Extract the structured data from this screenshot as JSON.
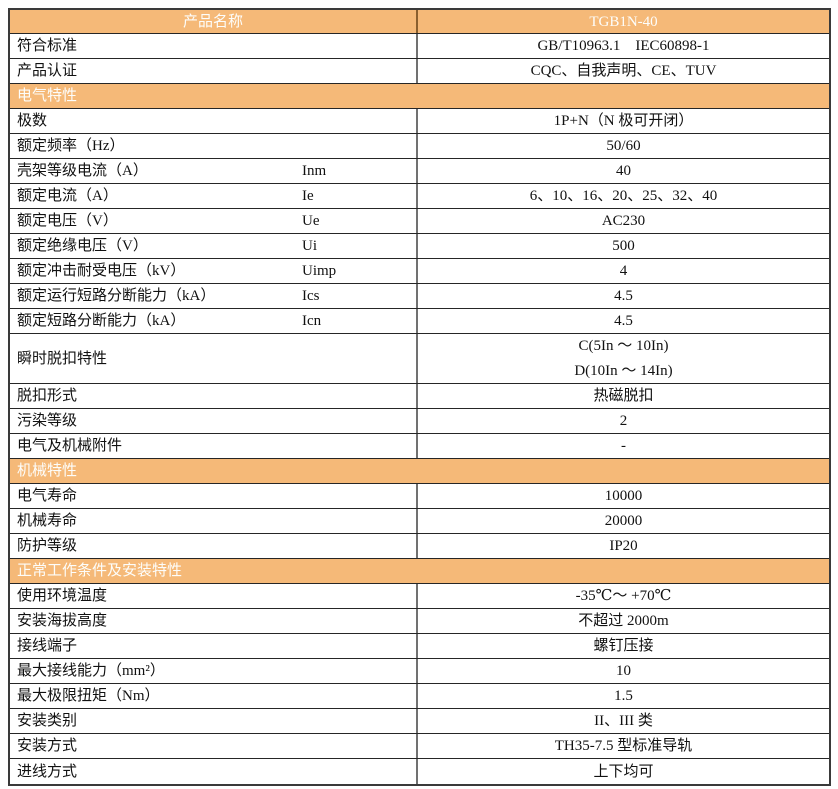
{
  "colors": {
    "band_bg": "#F5B978",
    "band_text": "#FDFDFA",
    "text": "#111111",
    "outer_border": "#3a3a3a",
    "row_border": "#262626",
    "divider": "#717171",
    "header_divider": "#8a5f2e",
    "page_bg": "#ffffff"
  },
  "table": {
    "rows": [
      {
        "type": "header",
        "label": "产品名称",
        "value": "TGB1N-40"
      },
      {
        "type": "spec",
        "label": "符合标准",
        "value": "GB/T10963.1　IEC60898-1"
      },
      {
        "type": "spec",
        "label": "产品认证",
        "value": "CQC、自我声明、CE、TUV"
      },
      {
        "type": "band",
        "label": "电气特性"
      },
      {
        "type": "spec",
        "label": "极数",
        "value": "1P+N（N 极可开闭）"
      },
      {
        "type": "spec",
        "label": "额定频率（Hz）",
        "value": "50/60"
      },
      {
        "type": "spec",
        "label": "壳架等级电流（A）",
        "symbol": "Inm",
        "value": "40"
      },
      {
        "type": "spec",
        "label": "额定电流（A）",
        "symbol": "Ie",
        "value": "6、10、16、20、25、32、40"
      },
      {
        "type": "spec",
        "label": "额定电压（V）",
        "symbol": "Ue",
        "value": "AC230"
      },
      {
        "type": "spec",
        "label": "额定绝缘电压（V）",
        "symbol": "Ui",
        "value": "500"
      },
      {
        "type": "spec",
        "label": "额定冲击耐受电压（kV）",
        "symbol": "Uimp",
        "value": "4"
      },
      {
        "type": "spec",
        "label": "额定运行短路分断能力（kA）",
        "symbol": "Ics",
        "value": "4.5"
      },
      {
        "type": "spec",
        "label": "额定短路分断能力（kA）",
        "symbol": "Icn",
        "value": "4.5"
      },
      {
        "type": "spec2",
        "label": "瞬时脱扣特性",
        "values": [
          "C(5In ～ 10In)",
          "D(10In ～ 14In)"
        ]
      },
      {
        "type": "spec",
        "label": "脱扣形式",
        "value": "热磁脱扣"
      },
      {
        "type": "spec",
        "label": "污染等级",
        "value": "2"
      },
      {
        "type": "spec",
        "label": "电气及机械附件",
        "value": "-"
      },
      {
        "type": "band",
        "label": "机械特性"
      },
      {
        "type": "spec",
        "label": "电气寿命",
        "value": "10000"
      },
      {
        "type": "spec",
        "label": "机械寿命",
        "value": "20000"
      },
      {
        "type": "spec",
        "label": "防护等级",
        "value": "IP20"
      },
      {
        "type": "band",
        "label": "正常工作条件及安装特性"
      },
      {
        "type": "spec",
        "label": "使用环境温度",
        "value": "-35℃～ +70℃"
      },
      {
        "type": "spec",
        "label": "安装海拔高度",
        "value": "不超过 2000m"
      },
      {
        "type": "spec",
        "label": "接线端子",
        "value": "螺钉压接"
      },
      {
        "type": "spec",
        "label": "最大接线能力（mm²）",
        "value": "10"
      },
      {
        "type": "spec",
        "label": "最大极限扭矩（Nm）",
        "value": "1.5"
      },
      {
        "type": "spec",
        "label": "安装类别",
        "value": "II、III 类"
      },
      {
        "type": "spec",
        "label": "安装方式",
        "value": "TH35-7.5 型标准导轨"
      },
      {
        "type": "spec",
        "label": "进线方式",
        "value": "上下均可"
      }
    ]
  }
}
